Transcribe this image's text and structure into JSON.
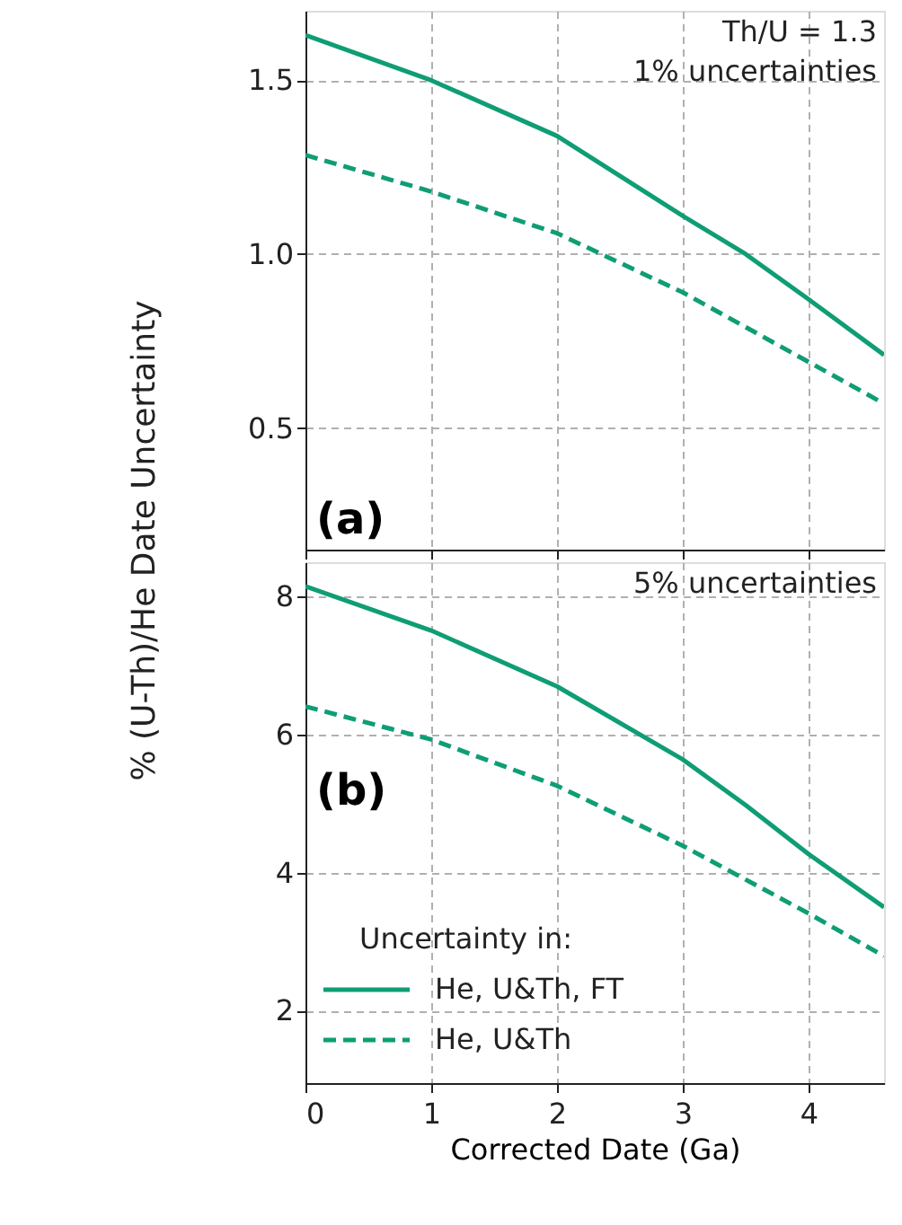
{
  "chart_data": [
    {
      "type": "line",
      "ylabel": "% (U-Th)/He Date Uncertainty",
      "annotations": [
        "Th/U = 1.3",
        "1% uncertainties",
        "(a)"
      ],
      "x": [
        0,
        1,
        2,
        3,
        3.5,
        4,
        4.6
      ],
      "xlim": [
        0,
        4.6
      ],
      "xticks": [
        0,
        1,
        2,
        3,
        4
      ],
      "ylim": [
        0.15,
        1.7
      ],
      "yticks": [
        0.5,
        {
          "value": 1,
          "label": "1.0"
        },
        1.5
      ],
      "series": [
        {
          "color": "#0f9d75",
          "line_style": "solid",
          "values": [
            1.63,
            1.5,
            1.34,
            1.11,
            1.0,
            0.87,
            0.71
          ]
        },
        {
          "color": "#0f9d75",
          "line_style": "dashed",
          "values": [
            1.285,
            1.18,
            1.06,
            0.89,
            0.79,
            0.69,
            0.57
          ]
        }
      ],
      "grid": true,
      "tick_labels": "y",
      "legend": false
    },
    {
      "type": "line",
      "xlabel": "Corrected Date (Ga)",
      "legend_title": "Uncertainty in:",
      "annotations": [
        "5% uncertainties",
        "(b)"
      ],
      "x": [
        0,
        1,
        2,
        3,
        3.5,
        4,
        4.6
      ],
      "xlim": [
        0,
        4.6
      ],
      "xticks": [
        0,
        1,
        2,
        3,
        4
      ],
      "ylim": [
        0.95,
        8.5
      ],
      "yticks": [
        2,
        4,
        6,
        8
      ],
      "series": [
        {
          "name": "He, U&Th, FT",
          "color": "#0f9d75",
          "line_style": "solid",
          "values": [
            8.15,
            7.51,
            6.7,
            5.64,
            4.98,
            4.27,
            3.5
          ]
        },
        {
          "name": "He, U&Th",
          "color": "#0f9d75",
          "line_style": "dashed",
          "values": [
            6.41,
            5.93,
            5.26,
            4.39,
            3.9,
            3.41,
            2.79
          ]
        }
      ],
      "grid": true,
      "legend": "bottom left"
    }
  ]
}
